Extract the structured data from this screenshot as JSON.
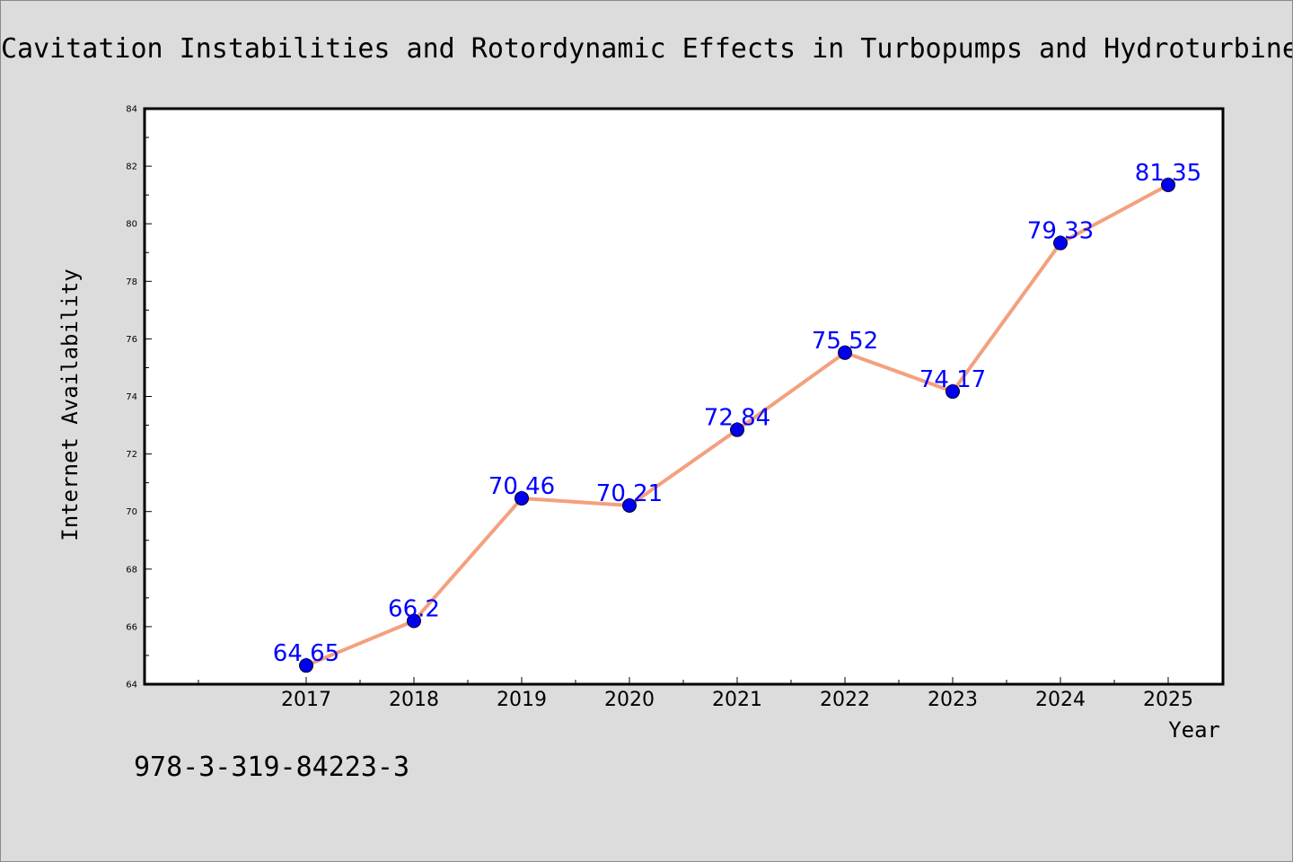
{
  "chart_data": {
    "type": "line",
    "title": "Cavitation Instabilities and Rotordynamic Effects in Turbopumps and Hydroturbines",
    "xlabel": "Year",
    "ylabel": "Internet Availability",
    "x": [
      "2017",
      "2018",
      "2019",
      "2020",
      "2021",
      "2022",
      "2023",
      "2024",
      "2025"
    ],
    "values": [
      64.65,
      66.2,
      70.46,
      70.21,
      72.84,
      75.52,
      74.17,
      79.33,
      81.35
    ],
    "data_labels": [
      "64.65",
      "66.2",
      "70.46",
      "70.21",
      "72.84",
      "75.52",
      "74.17",
      "79.33",
      "81.35"
    ],
    "ylim": [
      64,
      84
    ],
    "yticks": [
      "64",
      "66",
      "68",
      "70",
      "72",
      "74",
      "76",
      "78",
      "80",
      "82",
      "84"
    ],
    "grid": false,
    "legend": "none",
    "colors": {
      "line": "#f4a07e",
      "marker": "#0000ee",
      "data_label": "#0000ff",
      "background": "#dcdcdc",
      "plot_area": "#ffffff"
    },
    "annotation": "978-3-319-84223-3"
  }
}
